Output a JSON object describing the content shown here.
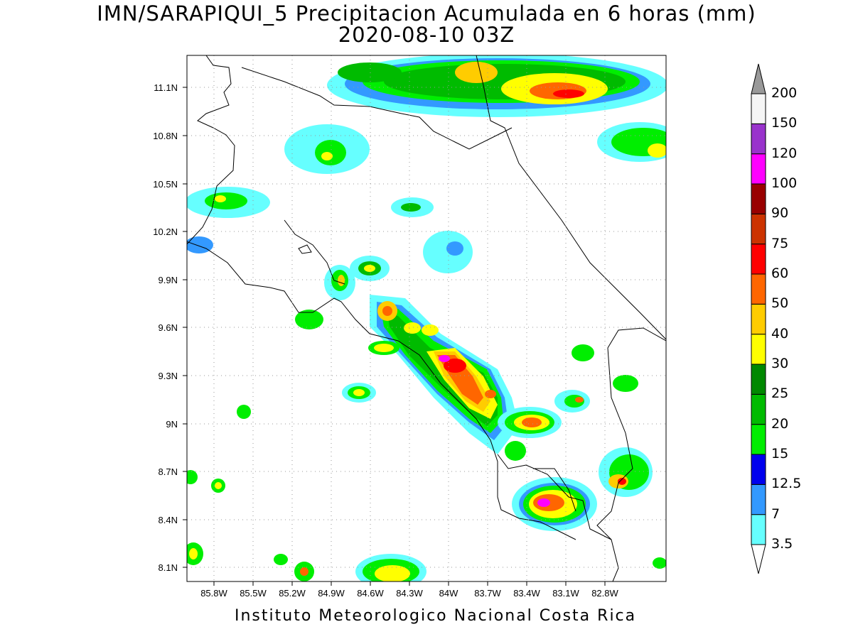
{
  "title": {
    "line1": "IMN/SARAPIQUI_5 Precipitacion Acumulada en 6 horas (mm)",
    "line2": "2020-08-10 03Z"
  },
  "footer": "Instituto Meteorologico Nacional Costa Rica",
  "axes": {
    "lat_labels": [
      "11.1N",
      "10.8N",
      "10.5N",
      "10.2N",
      "9.9N",
      "9.6N",
      "9.3N",
      "9N",
      "8.7N",
      "8.4N",
      "8.1N"
    ],
    "lon_labels": [
      "85.8W",
      "85.5W",
      "85.2W",
      "84.9W",
      "84.6W",
      "84.3W",
      "84W",
      "83.7W",
      "83.4W",
      "83.1W",
      "82.8W"
    ],
    "grid": true
  },
  "colorbar": {
    "levels": [
      "3.5",
      "7",
      "12.5",
      "15",
      "20",
      "25",
      "30",
      "40",
      "50",
      "60",
      "75",
      "90",
      "100",
      "120",
      "150",
      "200"
    ],
    "colors": [
      "#66ffff",
      "#3399ff",
      "#0000ee",
      "#00ee00",
      "#00bb00",
      "#008800",
      "#ffff00",
      "#ffcc00",
      "#ff6600",
      "#ff0000",
      "#cc3300",
      "#990000",
      "#ff00ff",
      "#9933cc",
      "#f5f5f5",
      "#999999"
    ]
  }
}
